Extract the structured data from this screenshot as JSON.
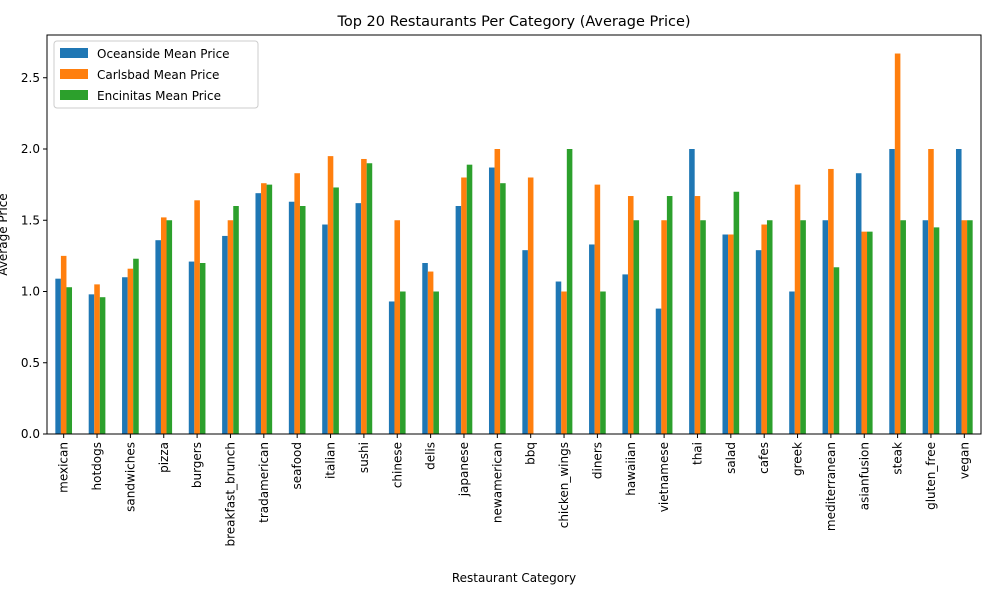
{
  "chart_data": {
    "type": "bar",
    "title": "Top 20 Restaurants Per Category (Average Price)",
    "xlabel": "Restaurant Category",
    "ylabel": "Average Price",
    "ylim": [
      0,
      2.8
    ],
    "yticks": [
      0.0,
      0.5,
      1.0,
      1.5,
      2.0,
      2.5
    ],
    "ytick_labels": [
      "0.0",
      "0.5",
      "1.0",
      "1.5",
      "2.0",
      "2.5"
    ],
    "legend_position": "top-left",
    "grid": false,
    "categories": [
      "mexican",
      "hotdogs",
      "sandwiches",
      "pizza",
      "burgers",
      "breakfast_brunch",
      "tradamerican",
      "seafood",
      "italian",
      "sushi",
      "chinese",
      "delis",
      "japanese",
      "newamerican",
      "bbq",
      "chicken_wings",
      "diners",
      "hawaiian",
      "vietnamese",
      "thai",
      "salad",
      "cafes",
      "greek",
      "mediterranean",
      "asianfusion",
      "steak",
      "gluten_free",
      "vegan"
    ],
    "series": [
      {
        "name": "Oceanside Mean Price",
        "color": "#1f77b4",
        "values": [
          1.09,
          0.98,
          1.1,
          1.36,
          1.21,
          1.39,
          1.69,
          1.63,
          1.47,
          1.62,
          0.93,
          1.2,
          1.6,
          1.87,
          1.29,
          1.07,
          1.33,
          1.12,
          0.88,
          2.0,
          1.4,
          1.29,
          1.0,
          1.5,
          1.83,
          2.0,
          1.5,
          2.0
        ]
      },
      {
        "name": "Carlsbad Mean Price",
        "color": "#ff7f0e",
        "values": [
          1.25,
          1.05,
          1.16,
          1.52,
          1.64,
          1.5,
          1.76,
          1.83,
          1.95,
          1.93,
          1.5,
          1.14,
          1.8,
          2.0,
          1.8,
          1.0,
          1.75,
          1.67,
          1.5,
          1.67,
          1.4,
          1.47,
          1.75,
          1.86,
          1.42,
          2.67,
          2.0,
          1.5
        ]
      },
      {
        "name": "Encinitas Mean Price",
        "color": "#2ca02c",
        "values": [
          1.03,
          0.96,
          1.23,
          1.5,
          1.2,
          1.6,
          1.75,
          1.6,
          1.73,
          1.9,
          1.0,
          1.0,
          1.89,
          1.76,
          0.0,
          2.0,
          1.0,
          1.5,
          1.67,
          1.5,
          1.7,
          1.5,
          1.5,
          1.17,
          1.42,
          1.5,
          1.45,
          1.5
        ]
      }
    ]
  }
}
